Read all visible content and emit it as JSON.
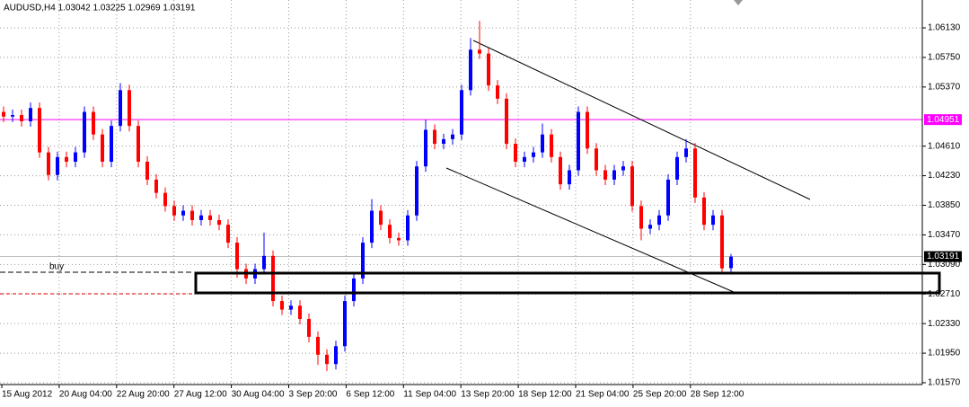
{
  "chart_data": {
    "type": "candlestick",
    "title": "AUDUSD,H4  1.03042 1.03225 1.02969 1.03191",
    "x_labels": [
      "15 Aug 2012",
      "20 Aug 04:00",
      "22 Aug 20:00",
      "27 Aug 12:00",
      "30 Aug 04:00",
      "3 Sep 20:00",
      "6 Sep 12:00",
      "11 Sep 04:00",
      "13 Sep 20:00",
      "18 Sep 12:00",
      "21 Sep 04:00",
      "25 Sep 20:00",
      "28 Sep 12:00"
    ],
    "open": [
      1.0505,
      1.0499,
      1.0501,
      1.0493,
      1.051,
      1.0453,
      1.0424,
      1.0447,
      1.0441,
      1.0453,
      1.0505,
      1.0476,
      1.0441,
      1.0487,
      1.0533,
      1.0487,
      1.0441,
      1.0418,
      1.0401,
      1.0384,
      1.0372,
      1.0378,
      1.0366,
      1.0372,
      1.0366,
      1.036,
      1.0337,
      1.0303,
      1.0291,
      1.0303,
      1.032,
      1.0262,
      1.0251,
      1.0256,
      1.0239,
      1.0216,
      1.0193,
      1.0181,
      1.0204,
      1.0262,
      1.0291,
      1.0337,
      1.0378,
      1.036,
      1.0343,
      1.034,
      1.0372,
      1.0435,
      1.0482,
      1.0464,
      1.047,
      1.0476,
      1.0533,
      1.0585,
      1.058,
      1.0539,
      1.0522,
      1.0464,
      1.0441,
      1.0447,
      1.0453,
      1.0476,
      1.0447,
      1.0412,
      1.043,
      1.0505,
      1.0458,
      1.043,
      1.0418,
      1.043,
      1.0435,
      1.0384,
      1.0355,
      1.036,
      1.0372,
      1.0418,
      1.0447,
      1.0458,
      1.0395,
      1.036,
      1.0372,
      1.03042
    ],
    "high": [
      1.0512,
      1.0508,
      1.0508,
      1.0517,
      1.0517,
      1.046,
      1.0454,
      1.0454,
      1.046,
      1.0512,
      1.0512,
      1.0483,
      1.0494,
      1.0542,
      1.054,
      1.0494,
      1.0448,
      1.0425,
      1.0408,
      1.0391,
      1.0385,
      1.0385,
      1.0379,
      1.0379,
      1.0373,
      1.0367,
      1.0344,
      1.031,
      1.031,
      1.035,
      1.0327,
      1.0269,
      1.0263,
      1.0263,
      1.0246,
      1.0223,
      1.02,
      1.0211,
      1.0269,
      1.0298,
      1.0344,
      1.0393,
      1.0385,
      1.0367,
      1.035,
      1.0379,
      1.0442,
      1.0495,
      1.0489,
      1.0477,
      1.0483,
      1.054,
      1.06,
      1.0622,
      1.0587,
      1.0546,
      1.0529,
      1.0471,
      1.0454,
      1.046,
      1.049,
      1.0483,
      1.0454,
      1.0437,
      1.0512,
      1.0512,
      1.0465,
      1.0437,
      1.0437,
      1.0442,
      1.0442,
      1.0391,
      1.0367,
      1.0379,
      1.0425,
      1.0454,
      1.047,
      1.0465,
      1.0402,
      1.0379,
      1.0379,
      1.03225
    ],
    "low": [
      1.0492,
      1.0492,
      1.0486,
      1.0486,
      1.0446,
      1.0417,
      1.0417,
      1.0434,
      1.0434,
      1.0446,
      1.0469,
      1.0434,
      1.0434,
      1.048,
      1.048,
      1.0434,
      1.0411,
      1.0394,
      1.0377,
      1.0365,
      1.0365,
      1.0359,
      1.0359,
      1.0359,
      1.0353,
      1.033,
      1.0292,
      1.0284,
      1.0284,
      1.0296,
      1.0255,
      1.0244,
      1.0244,
      1.0232,
      1.0209,
      1.018,
      1.0172,
      1.0174,
      1.0197,
      1.0255,
      1.0284,
      1.033,
      1.0353,
      1.0336,
      1.0333,
      1.0333,
      1.0365,
      1.0428,
      1.0457,
      1.0457,
      1.0463,
      1.0469,
      1.0526,
      1.0573,
      1.0532,
      1.0515,
      1.0457,
      1.0434,
      1.0434,
      1.044,
      1.0446,
      1.044,
      1.0405,
      1.0405,
      1.0423,
      1.0451,
      1.0423,
      1.0411,
      1.0411,
      1.0423,
      1.0377,
      1.034,
      1.0348,
      1.0353,
      1.0365,
      1.0411,
      1.044,
      1.0388,
      1.0353,
      1.0353,
      1.0297,
      1.02969
    ],
    "close": [
      1.0499,
      1.0501,
      1.0493,
      1.051,
      1.0453,
      1.0424,
      1.0447,
      1.0441,
      1.0453,
      1.0505,
      1.0476,
      1.0441,
      1.0487,
      1.0533,
      1.0487,
      1.0441,
      1.0418,
      1.0401,
      1.0384,
      1.0372,
      1.0378,
      1.0366,
      1.0372,
      1.0366,
      1.036,
      1.0337,
      1.0303,
      1.0291,
      1.0303,
      1.032,
      1.0262,
      1.0251,
      1.0256,
      1.0239,
      1.0216,
      1.0193,
      1.0181,
      1.0204,
      1.0262,
      1.0291,
      1.0337,
      1.0378,
      1.036,
      1.0343,
      1.034,
      1.0372,
      1.0435,
      1.0482,
      1.0464,
      1.047,
      1.0476,
      1.0533,
      1.0585,
      1.058,
      1.0539,
      1.0522,
      1.0464,
      1.0441,
      1.0447,
      1.0453,
      1.0476,
      1.0447,
      1.0412,
      1.043,
      1.0505,
      1.0458,
      1.043,
      1.0418,
      1.043,
      1.0435,
      1.0384,
      1.0355,
      1.036,
      1.0372,
      1.0418,
      1.0447,
      1.0458,
      1.0395,
      1.036,
      1.0372,
      1.0304,
      1.03191
    ],
    "up_color": "#0000ff",
    "down_color": "#ff0000",
    "ylim": [
      1.01547,
      1.06488
    ],
    "yticks": [
      {
        "value": 1.0613,
        "label": "1.06130"
      },
      {
        "value": 1.0575,
        "label": "1.05750"
      },
      {
        "value": 1.0537,
        "label": "1.05370"
      },
      {
        "value": 1.0461,
        "label": "1.04610"
      },
      {
        "value": 1.0423,
        "label": "1.04230"
      },
      {
        "value": 1.0385,
        "label": "1.03850"
      },
      {
        "value": 1.0347,
        "label": "1.03470"
      },
      {
        "value": 1.0309,
        "label": "1.03090"
      },
      {
        "value": 1.0271,
        "label": "1.02710"
      },
      {
        "value": 1.0233,
        "label": "1.02330"
      },
      {
        "value": 1.0195,
        "label": "1.01950"
      },
      {
        "value": 1.0157,
        "label": "1.01570"
      }
    ],
    "grid": true,
    "levels": [
      {
        "price": 1.04951,
        "color": "#ff00ff"
      },
      {
        "price": 1.03191,
        "color": "#000000"
      }
    ],
    "annotations": [
      {
        "label": "buy",
        "value": 1.0299
      }
    ]
  }
}
